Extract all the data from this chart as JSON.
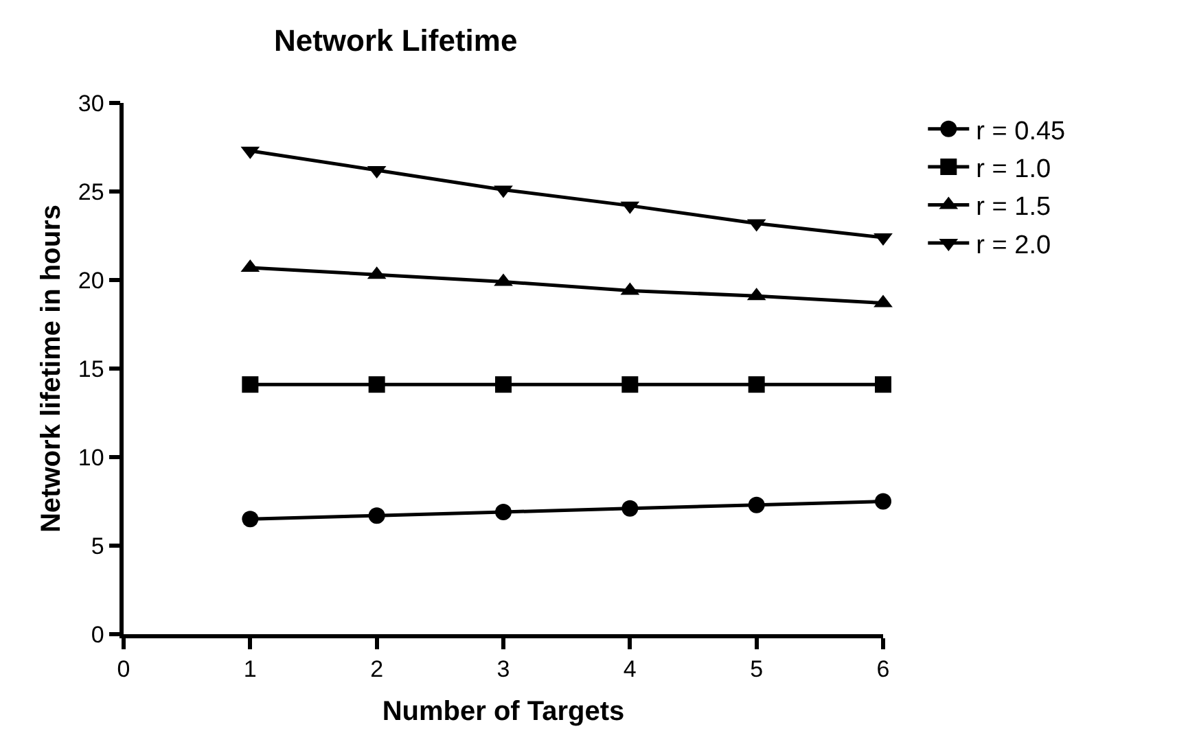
{
  "chart_data": {
    "type": "line",
    "title": "Network Lifetime",
    "xlabel": "Number of Targets",
    "ylabel": "Network lifetime in hours",
    "x": [
      1,
      2,
      3,
      4,
      5,
      6
    ],
    "series": [
      {
        "name": "r = 0.45",
        "color": "#000000",
        "marker": "circle",
        "values": [
          6.5,
          6.7,
          6.9,
          7.1,
          7.3,
          7.5
        ]
      },
      {
        "name": "r = 1.0",
        "color": "#000000",
        "marker": "square",
        "values": [
          14.1,
          14.1,
          14.1,
          14.1,
          14.1,
          14.1
        ]
      },
      {
        "name": "r = 1.5",
        "color": "#000000",
        "marker": "triangle",
        "values": [
          20.7,
          20.3,
          19.9,
          19.4,
          19.1,
          18.7
        ]
      },
      {
        "name": "r = 2.0",
        "color": "#000000",
        "marker": "triangle-down",
        "values": [
          27.3,
          26.2,
          25.1,
          24.2,
          23.2,
          22.4
        ]
      }
    ],
    "xlim": [
      0,
      6
    ],
    "xticks": [
      0,
      1,
      2,
      3,
      4,
      5,
      6
    ],
    "ylim": [
      0,
      30
    ],
    "yticks": [
      0,
      5,
      10,
      15,
      20,
      25,
      30
    ],
    "legend": "right",
    "line_style": "solid"
  }
}
